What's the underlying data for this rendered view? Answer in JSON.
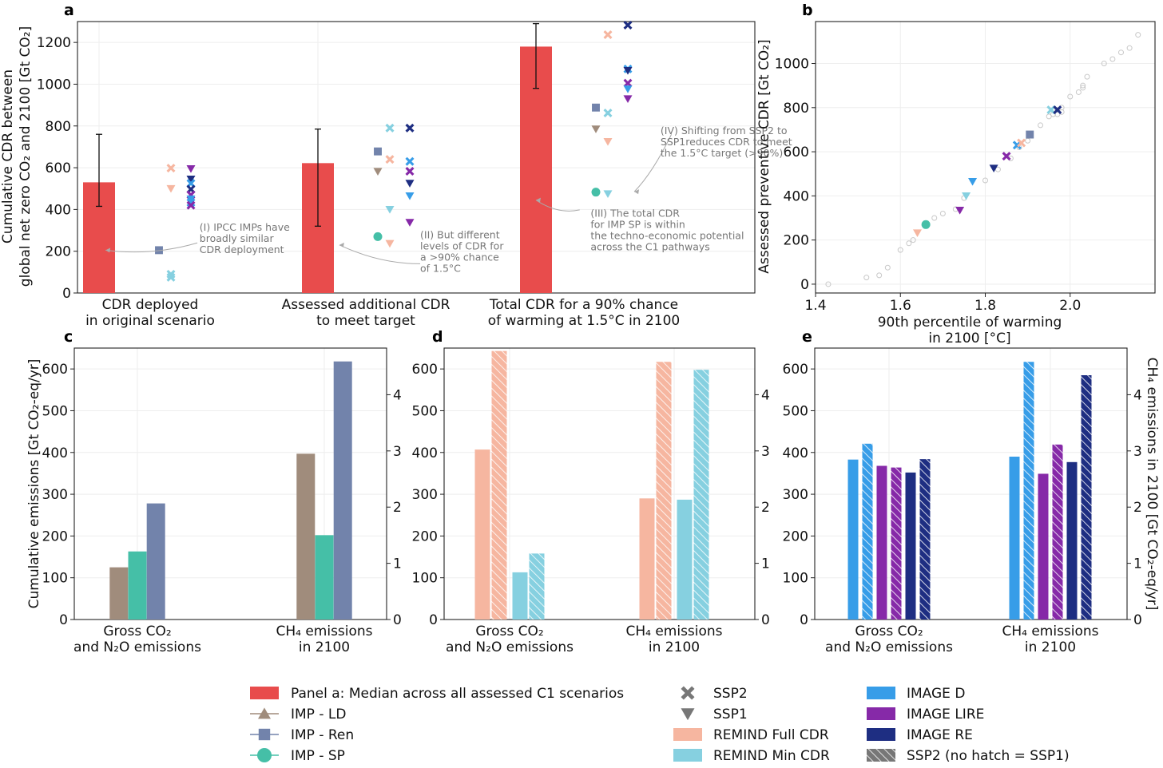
{
  "colors": {
    "median": "#e84c4c",
    "imp_ld": "#a08c7c",
    "imp_ren": "#7283ab",
    "imp_sp": "#45bfa7",
    "remind_full": "#f6b6a0",
    "remind_min": "#86d0e0",
    "image_d": "#379de8",
    "image_lire": "#8629a8",
    "image_re": "#1e2e82",
    "scatter_bg": "#cccccc"
  },
  "chart_data": [
    {
      "panel": "a",
      "type": "bar",
      "ylabel_lines": [
        "Cumulative CDR between",
        "global net zero CO₂ and 2100 [Gt CO₂]"
      ],
      "ylim": [
        0,
        1300
      ],
      "yticks": [
        0,
        200,
        400,
        600,
        800,
        1000,
        1200
      ],
      "categories": [
        [
          "CDR deployed",
          "in original scenario"
        ],
        [
          "Assessed additional CDR",
          "to meet target"
        ],
        [
          "Total CDR for a 90% chance",
          "of warming at 1.5°C in 2100"
        ]
      ],
      "median": [
        530,
        622,
        1180
      ],
      "err_low": [
        415,
        320,
        980
      ],
      "err_high": [
        760,
        785,
        1290
      ],
      "points": [
        [
          {
            "off": 0.75,
            "y": 205,
            "m": "square",
            "c": "imp_ren"
          },
          {
            "off": 0.9,
            "y": 75,
            "m": "x",
            "c": "remind_min"
          },
          {
            "off": 0.9,
            "y": 90,
            "m": "x",
            "c": "remind_min"
          },
          {
            "off": 0.9,
            "y": 500,
            "m": "tri",
            "c": "remind_full"
          },
          {
            "off": 0.9,
            "y": 598,
            "m": "x",
            "c": "remind_full"
          },
          {
            "off": 1.15,
            "y": 595,
            "m": "tri",
            "c": "image_lire"
          },
          {
            "off": 1.15,
            "y": 545,
            "m": "tri",
            "c": "image_re"
          },
          {
            "off": 1.15,
            "y": 525,
            "m": "x",
            "c": "image_d"
          },
          {
            "off": 1.15,
            "y": 497,
            "m": "x",
            "c": "image_re"
          },
          {
            "off": 1.15,
            "y": 470,
            "m": "x",
            "c": "image_lire"
          },
          {
            "off": 1.15,
            "y": 450,
            "m": "tri",
            "c": "image_d"
          },
          {
            "off": 1.15,
            "y": 433,
            "m": "x",
            "c": "image_d"
          },
          {
            "off": 1.15,
            "y": 420,
            "m": "x",
            "c": "image_lire"
          }
        ],
        [
          {
            "off": 0.75,
            "y": 678,
            "m": "square",
            "c": "imp_ren"
          },
          {
            "off": 0.75,
            "y": 582,
            "m": "tri",
            "c": "imp_ld"
          },
          {
            "off": 0.75,
            "y": 270,
            "m": "circle",
            "c": "imp_sp"
          },
          {
            "off": 0.9,
            "y": 640,
            "m": "x",
            "c": "remind_full"
          },
          {
            "off": 0.9,
            "y": 237,
            "m": "tri",
            "c": "remind_full"
          },
          {
            "off": 0.9,
            "y": 790,
            "m": "x",
            "c": "remind_min"
          },
          {
            "off": 0.9,
            "y": 400,
            "m": "tri",
            "c": "remind_min"
          },
          {
            "off": 1.15,
            "y": 790,
            "m": "x",
            "c": "image_re"
          },
          {
            "off": 1.15,
            "y": 630,
            "m": "x",
            "c": "image_d"
          },
          {
            "off": 1.15,
            "y": 583,
            "m": "x",
            "c": "image_lire"
          },
          {
            "off": 1.15,
            "y": 525,
            "m": "tri",
            "c": "image_re"
          },
          {
            "off": 1.15,
            "y": 465,
            "m": "tri",
            "c": "image_d"
          },
          {
            "off": 1.15,
            "y": 338,
            "m": "tri",
            "c": "image_lire"
          }
        ],
        [
          {
            "off": 0.75,
            "y": 888,
            "m": "square",
            "c": "imp_ren"
          },
          {
            "off": 0.75,
            "y": 785,
            "m": "tri",
            "c": "imp_ld"
          },
          {
            "off": 0.75,
            "y": 483,
            "m": "circle",
            "c": "imp_sp"
          },
          {
            "off": 0.9,
            "y": 1237,
            "m": "x",
            "c": "remind_full"
          },
          {
            "off": 0.9,
            "y": 725,
            "m": "tri",
            "c": "remind_full"
          },
          {
            "off": 0.9,
            "y": 862,
            "m": "x",
            "c": "remind_min"
          },
          {
            "off": 0.9,
            "y": 475,
            "m": "tri",
            "c": "remind_min"
          },
          {
            "off": 1.15,
            "y": 1283,
            "m": "x",
            "c": "image_re"
          },
          {
            "off": 1.15,
            "y": 1073,
            "m": "x",
            "c": "image_d"
          },
          {
            "off": 1.15,
            "y": 1065,
            "m": "tri",
            "c": "image_re"
          },
          {
            "off": 1.15,
            "y": 1005,
            "m": "x",
            "c": "image_lire"
          },
          {
            "off": 1.15,
            "y": 977,
            "m": "tri",
            "c": "image_d"
          },
          {
            "off": 1.15,
            "y": 930,
            "m": "tri",
            "c": "image_lire"
          }
        ]
      ],
      "annotations": [
        {
          "lines": [
            "(I) IPCC IMPs have",
            "broadly similar",
            "CDR deployment"
          ],
          "x": 1.46,
          "y": 298,
          "from": [
            1.45,
            240
          ],
          "to": [
            1.03,
            205
          ]
        },
        {
          "lines": [
            "(II) But different",
            "levels of CDR for",
            "a >90% chance",
            "of 1.5°C"
          ],
          "x": 2.47,
          "y": 262,
          "from": [
            2.47,
            140
          ],
          "to": [
            2.1,
            230
          ]
        },
        {
          "lines": [
            "(III) The total CDR",
            "for IMP SP is within",
            "the techno-economic potential",
            "across the C1 pathways"
          ],
          "x": 3.25,
          "y": 365,
          "from": [
            3.2,
            398
          ],
          "to": [
            3.0,
            445
          ]
        },
        {
          "lines": [
            "(IV) Shifting from SSP2 to",
            "SSP1reduces CDR to meet",
            "the 1.5°C target (>90%)"
          ],
          "x": 3.57,
          "y": 760,
          "from": [
            3.62,
            760
          ],
          "to": [
            3.45,
            485
          ]
        }
      ]
    },
    {
      "panel": "b",
      "type": "scatter",
      "xlabel_lines": [
        "90th percentile of warming",
        "in 2100 [°C]"
      ],
      "ylabel": "Assessed preventive CDR [Gt CO₂]",
      "xlim": [
        1.4,
        2.2
      ],
      "ylim": [
        -40,
        1190
      ],
      "xticks": [
        1.4,
        1.6,
        1.8,
        2.0
      ],
      "yticks": [
        0,
        200,
        400,
        600,
        800,
        1000
      ],
      "background": [
        [
          1.43,
          0
        ],
        [
          1.52,
          30
        ],
        [
          1.55,
          40
        ],
        [
          1.57,
          75
        ],
        [
          1.6,
          155
        ],
        [
          1.62,
          185
        ],
        [
          1.63,
          200
        ],
        [
          1.66,
          270
        ],
        [
          1.68,
          300
        ],
        [
          1.7,
          320
        ],
        [
          1.73,
          340
        ],
        [
          1.75,
          390
        ],
        [
          1.8,
          470
        ],
        [
          1.83,
          520
        ],
        [
          1.86,
          570
        ],
        [
          1.88,
          620
        ],
        [
          1.9,
          650
        ],
        [
          1.93,
          720
        ],
        [
          1.95,
          760
        ],
        [
          1.96,
          770
        ],
        [
          1.97,
          770
        ],
        [
          1.98,
          780
        ],
        [
          1.97,
          790
        ],
        [
          1.98,
          800
        ],
        [
          2.0,
          850
        ],
        [
          2.02,
          870
        ],
        [
          2.03,
          890
        ],
        [
          2.03,
          900
        ],
        [
          2.04,
          940
        ],
        [
          2.08,
          1000
        ],
        [
          2.1,
          1020
        ],
        [
          2.12,
          1050
        ],
        [
          2.14,
          1070
        ],
        [
          2.16,
          1130
        ]
      ],
      "points": [
        {
          "x": 1.64,
          "y": 232,
          "m": "tri",
          "c": "remind_full"
        },
        {
          "x": 1.66,
          "y": 270,
          "m": "circle",
          "c": "imp_sp"
        },
        {
          "x": 1.74,
          "y": 335,
          "m": "tri",
          "c": "image_lire"
        },
        {
          "x": 1.755,
          "y": 400,
          "m": "tri",
          "c": "remind_min"
        },
        {
          "x": 1.77,
          "y": 465,
          "m": "tri",
          "c": "image_d"
        },
        {
          "x": 1.82,
          "y": 525,
          "m": "tri",
          "c": "image_re"
        },
        {
          "x": 1.85,
          "y": 580,
          "m": "x",
          "c": "image_lire"
        },
        {
          "x": 1.875,
          "y": 630,
          "m": "x",
          "c": "image_d"
        },
        {
          "x": 1.885,
          "y": 640,
          "m": "x",
          "c": "remind_full"
        },
        {
          "x": 1.905,
          "y": 678,
          "m": "square",
          "c": "imp_ren"
        },
        {
          "x": 1.955,
          "y": 790,
          "m": "x",
          "c": "remind_min"
        },
        {
          "x": 1.97,
          "y": 790,
          "m": "x",
          "c": "image_re"
        }
      ]
    },
    {
      "panel": "c",
      "type": "bar",
      "ylabel": "Cumulative emissions [Gt CO₂-eq/yr]",
      "ylim": [
        0,
        650
      ],
      "yticks": [
        0,
        100,
        200,
        300,
        400,
        500,
        600
      ],
      "y2lim": [
        0,
        4.83
      ],
      "y2ticks": [
        0,
        1,
        2,
        3,
        4
      ],
      "categories": [
        [
          "Gross CO₂",
          "and N₂O emissions"
        ],
        [
          "CH₄ emissions",
          "in 2100"
        ]
      ],
      "bars": [
        {
          "g": 0,
          "o": -0.29,
          "v": 125,
          "c": "imp_ld",
          "h": false
        },
        {
          "g": 0,
          "o": 0,
          "v": 163,
          "c": "imp_sp",
          "h": false
        },
        {
          "g": 0,
          "o": 0.29,
          "v": 278,
          "c": "imp_ren",
          "h": false
        },
        {
          "g": 1,
          "o": -0.29,
          "v": 397,
          "c": "imp_ld",
          "h": false
        },
        {
          "g": 1,
          "o": 0,
          "v": 202,
          "c": "imp_sp",
          "h": false
        },
        {
          "g": 1,
          "o": 0.29,
          "v": 618,
          "c": "imp_ren",
          "h": false
        }
      ]
    },
    {
      "panel": "d",
      "type": "bar",
      "ylim": [
        0,
        650
      ],
      "yticks": [
        0,
        100,
        200,
        300,
        400,
        500,
        600
      ],
      "y2lim": [
        0,
        4.83
      ],
      "y2ticks": [
        0,
        1,
        2,
        3,
        4
      ],
      "categories": [
        [
          "Gross CO₂",
          "and N₂O emissions"
        ],
        [
          "CH₄ emissions",
          "in 2100"
        ]
      ],
      "bars": [
        {
          "g": 0,
          "o": -0.34,
          "v": 407,
          "c": "remind_full",
          "h": false
        },
        {
          "g": 0,
          "o": -0.13,
          "v": 643,
          "c": "remind_full",
          "h": true
        },
        {
          "g": 0,
          "o": 0.13,
          "v": 113,
          "c": "remind_min",
          "h": false
        },
        {
          "g": 0,
          "o": 0.34,
          "v": 158,
          "c": "remind_min",
          "h": true
        },
        {
          "g": 1,
          "o": -0.34,
          "v": 290,
          "c": "remind_full",
          "h": false
        },
        {
          "g": 1,
          "o": -0.13,
          "v": 617,
          "c": "remind_full",
          "h": true
        },
        {
          "g": 1,
          "o": 0.13,
          "v": 287,
          "c": "remind_min",
          "h": false
        },
        {
          "g": 1,
          "o": 0.34,
          "v": 598,
          "c": "remind_min",
          "h": true
        }
      ]
    },
    {
      "panel": "e",
      "type": "bar",
      "ylim": [
        0,
        650
      ],
      "yticks": [
        0,
        100,
        200,
        300,
        400,
        500,
        600
      ],
      "y2label": "CH₄ emissions in 2100 [Gt CO₂-eq/yr]",
      "y2lim": [
        0,
        4.83
      ],
      "y2ticks": [
        0,
        1,
        2,
        3,
        4
      ],
      "categories": [
        [
          "Gross CO₂",
          "and N₂O emissions"
        ],
        [
          "CH₄ emissions",
          "in 2100"
        ]
      ],
      "bars": [
        {
          "g": 0,
          "o": -0.45,
          "v": 383,
          "c": "image_d",
          "h": false
        },
        {
          "g": 0,
          "o": -0.27,
          "v": 421,
          "c": "image_d",
          "h": true
        },
        {
          "g": 0,
          "o": -0.09,
          "v": 368,
          "c": "image_lire",
          "h": false
        },
        {
          "g": 0,
          "o": 0.09,
          "v": 364,
          "c": "image_lire",
          "h": true
        },
        {
          "g": 0,
          "o": 0.27,
          "v": 352,
          "c": "image_re",
          "h": false
        },
        {
          "g": 0,
          "o": 0.45,
          "v": 384,
          "c": "image_re",
          "h": true
        },
        {
          "g": 1,
          "o": -0.45,
          "v": 390,
          "c": "image_d",
          "h": false
        },
        {
          "g": 1,
          "o": -0.27,
          "v": 617,
          "c": "image_d",
          "h": true
        },
        {
          "g": 1,
          "o": -0.09,
          "v": 349,
          "c": "image_lire",
          "h": false
        },
        {
          "g": 1,
          "o": 0.09,
          "v": 419,
          "c": "image_lire",
          "h": true
        },
        {
          "g": 1,
          "o": 0.27,
          "v": 377,
          "c": "image_re",
          "h": false
        },
        {
          "g": 1,
          "o": 0.45,
          "v": 585,
          "c": "image_re",
          "h": true
        }
      ]
    }
  ],
  "legend": [
    {
      "label": "Panel a: Median across all assessed C1 scenarios",
      "kind": "patch",
      "c": "median"
    },
    {
      "label": "IMP - LD",
      "kind": "line-tri",
      "c": "imp_ld"
    },
    {
      "label": "IMP - Ren",
      "kind": "line-square",
      "c": "imp_ren"
    },
    {
      "label": "IMP - SP",
      "kind": "line-circle",
      "c": "imp_sp"
    },
    {
      "label": "SSP2",
      "kind": "x",
      "c": "ssp_gray"
    },
    {
      "label": "SSP1",
      "kind": "tri",
      "c": "ssp_gray"
    },
    {
      "label": "REMIND Full CDR",
      "kind": "patch",
      "c": "remind_full"
    },
    {
      "label": "REMIND Min CDR",
      "kind": "patch",
      "c": "remind_min"
    },
    {
      "label": "IMAGE D",
      "kind": "patch",
      "c": "image_d"
    },
    {
      "label": "IMAGE LIRE",
      "kind": "patch",
      "c": "image_lire"
    },
    {
      "label": "IMAGE RE",
      "kind": "patch",
      "c": "image_re"
    },
    {
      "label": "SSP2 (no hatch = SSP1)",
      "kind": "hatch",
      "c": "ssp_gray"
    }
  ],
  "panel_labels": [
    "a",
    "b",
    "c",
    "d",
    "e"
  ]
}
